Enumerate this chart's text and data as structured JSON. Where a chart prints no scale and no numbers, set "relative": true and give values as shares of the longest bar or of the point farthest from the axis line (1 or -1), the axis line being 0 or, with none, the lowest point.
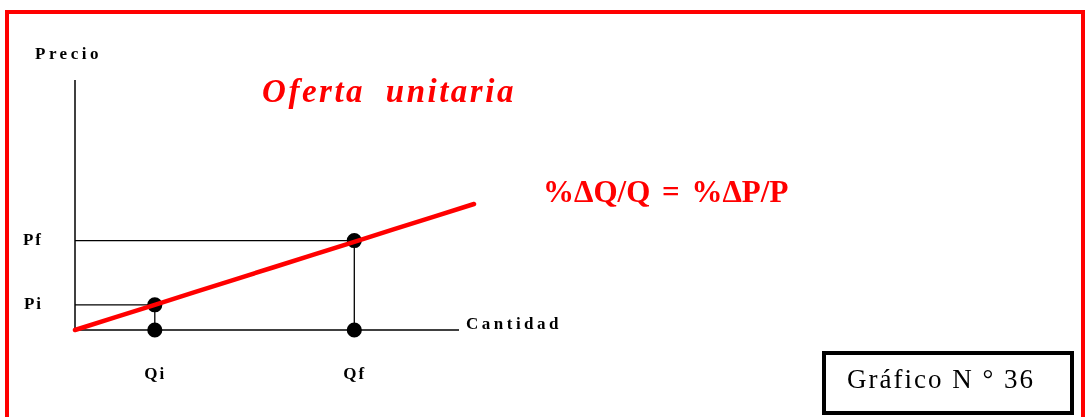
{
  "chart_data": {
    "type": "line",
    "relative": true,
    "title": "Oferta unitaria",
    "xlabel": "Cantidad",
    "annotations": [
      "Precio",
      "%ΔQ/Q = %ΔP/P",
      "Gráfico N ° 36"
    ],
    "categories": [
      null,
      null,
      "Qi",
      null,
      null,
      null,
      null,
      "Qf",
      null,
      null,
      null
    ],
    "series": [
      {
        "type": "line",
        "name": "Pi",
        "color": "#000000",
        "values": [
          0.2,
          0.2,
          0.2,
          null,
          null,
          null,
          null,
          null,
          null,
          null,
          null
        ]
      },
      {
        "type": "line",
        "name": "Pf",
        "color": "#000000",
        "values": [
          0.71,
          0.71,
          0.71,
          0.71,
          0.71,
          0.71,
          0.71,
          0.71,
          null,
          null,
          null
        ]
      },
      {
        "type": "line",
        "color": "#000000",
        "x": [
          "Qi",
          "Qi"
        ],
        "values": [
          0.2,
          0
        ]
      },
      {
        "type": "line",
        "color": "#000000",
        "x": [
          "Qf",
          "Qf"
        ],
        "values": [
          0.71,
          0
        ]
      },
      {
        "type": "scatter",
        "color": "#000000",
        "marker": "circle",
        "x": [
          "Qi",
          "Qf",
          "Qi",
          "Qf"
        ],
        "values": [
          0.2,
          0.71,
          0,
          0
        ]
      },
      {
        "type": "line",
        "color": "#ff0000",
        "values": [
          0,
          0.1,
          0.2,
          0.3,
          0.4,
          0.5,
          0.6,
          0.7,
          0.8,
          0.9,
          1
        ]
      }
    ]
  }
}
